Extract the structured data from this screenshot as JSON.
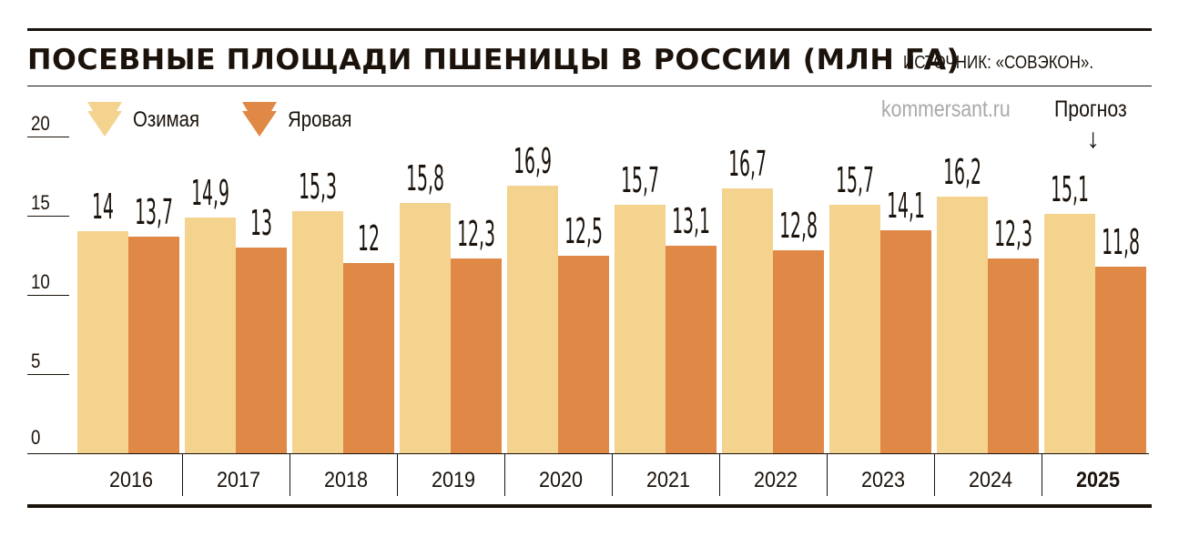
{
  "header": {
    "title": "ПОСЕВНЫЕ ПЛОЩАДИ ПШЕНИЦЫ В РОССИИ (МЛН ГА)",
    "source": "ИСТОЧНИК: «СОВЭКОН».",
    "watermark": "kommersant.ru",
    "forecast_label": "Прогноз",
    "forecast_arrow": "↓"
  },
  "legend": [
    {
      "label": "Озимая",
      "color": "#f4d38f"
    },
    {
      "label": "Яровая",
      "color": "#e08845"
    }
  ],
  "y_ticks": [
    "0",
    "5",
    "10",
    "15",
    "20"
  ],
  "colors": {
    "winter": "#f4d38f",
    "spring": "#e08845",
    "ink": "#1a120b",
    "watermark": "#a9a9a9"
  },
  "chart_data": {
    "type": "bar",
    "title": "ПОСЕВНЫЕ ПЛОЩАДИ ПШЕНИЦЫ В РОССИИ (МЛН ГА)",
    "subtitle": "ИСТОЧНИК: «СОВЭКОН».",
    "xlabel": "",
    "ylabel": "млн га",
    "categories": [
      "2016",
      "2017",
      "2018",
      "2019",
      "2020",
      "2021",
      "2022",
      "2023",
      "2024",
      "2025"
    ],
    "series": [
      {
        "name": "Озимая",
        "values": [
          14,
          14.9,
          15.3,
          15.8,
          16.9,
          15.7,
          16.7,
          15.7,
          16.2,
          15.1
        ],
        "labels": [
          "14",
          "14,9",
          "15,3",
          "15,8",
          "16,9",
          "15,7",
          "16,7",
          "15,7",
          "16,2",
          "15,1"
        ]
      },
      {
        "name": "Яровая",
        "values": [
          13.7,
          13,
          12,
          12.3,
          12.5,
          13.1,
          12.8,
          14.1,
          12.3,
          11.8
        ],
        "labels": [
          "13,7",
          "13",
          "12",
          "12,3",
          "12,5",
          "13,1",
          "12,8",
          "14,1",
          "12,3",
          "11,8"
        ]
      }
    ],
    "ylim": [
      0,
      20
    ],
    "yticks": [
      0,
      5,
      10,
      15,
      20
    ],
    "grid": false,
    "legend_position": "top-left",
    "annotations": [
      {
        "text": "Прогноз",
        "target": "2025"
      }
    ]
  }
}
